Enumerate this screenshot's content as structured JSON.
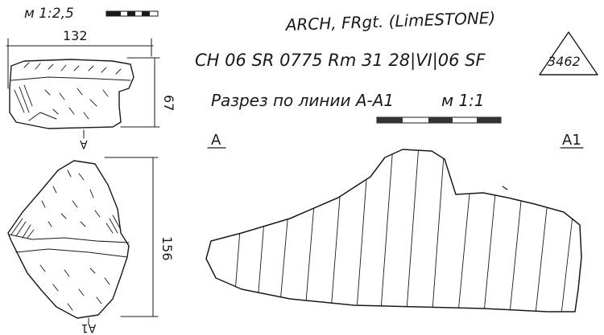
{
  "header": {
    "scale_small": "м 1:2,5",
    "title": "ARCH, FRgt. (LimESTONE)",
    "catalog": "CH 06 SR 0775 Rm 31 28|VI|06 SF",
    "sf_number": "3462",
    "section_caption": "Разрез по линии A-A1",
    "scale_large": "м 1:1"
  },
  "views": {
    "top": {
      "width_dim": "132",
      "height_dim": "67",
      "section_label": "A"
    },
    "front": {
      "height_dim": "156",
      "section_label": "A1"
    }
  },
  "section": {
    "left_label": "A",
    "right_label": "A1"
  }
}
